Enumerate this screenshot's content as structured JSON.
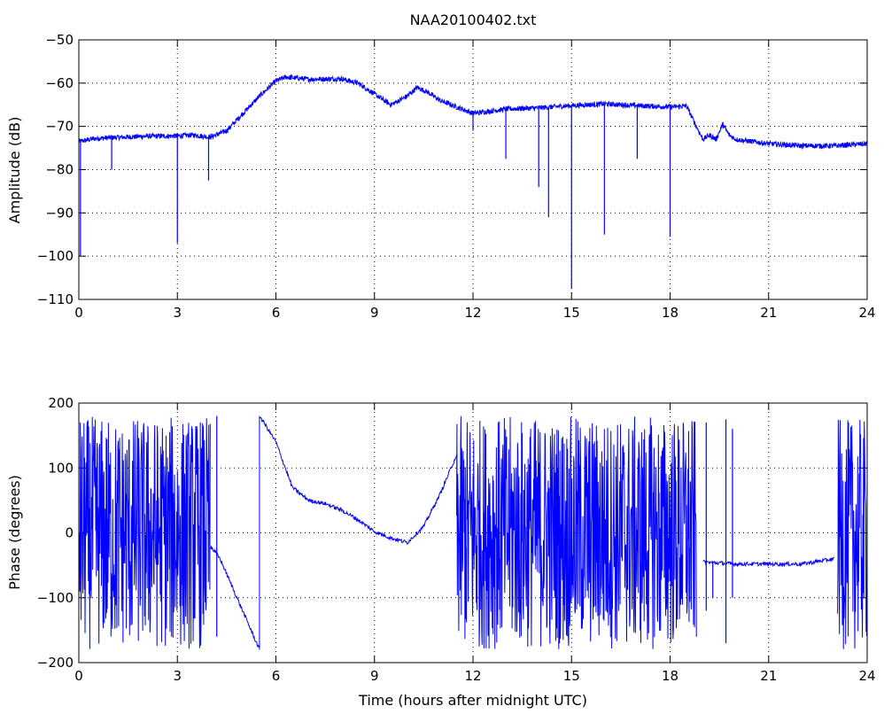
{
  "chart_data": [
    {
      "type": "line",
      "title": "NAA20100402.txt",
      "xlabel": "",
      "ylabel": "Amplitude (dB)",
      "xlim": [
        0,
        24
      ],
      "ylim": [
        -110,
        -50
      ],
      "xticks": [
        0,
        3,
        6,
        9,
        12,
        15,
        18,
        21,
        24
      ],
      "yticks": [
        -110,
        -100,
        -90,
        -80,
        -70,
        -60,
        -50
      ],
      "grid": true,
      "color": "#0000ff",
      "series": [
        {
          "baseline": [
            [
              0,
              -73.5
            ],
            [
              0.5,
              -72.8
            ],
            [
              1,
              -72.6
            ],
            [
              2,
              -72.3
            ],
            [
              3,
              -72.2
            ],
            [
              3.5,
              -72
            ],
            [
              4,
              -72.5
            ],
            [
              4.5,
              -71
            ],
            [
              5,
              -67
            ],
            [
              5.5,
              -63
            ],
            [
              6,
              -59.5
            ],
            [
              6.3,
              -58.6
            ],
            [
              7,
              -59.1
            ],
            [
              8,
              -59
            ],
            [
              8.5,
              -60
            ],
            [
              9,
              -62.5
            ],
            [
              9.5,
              -65
            ],
            [
              10,
              -63
            ],
            [
              10.3,
              -61
            ],
            [
              10.6,
              -62
            ],
            [
              11,
              -64
            ],
            [
              11.5,
              -65.5
            ],
            [
              12,
              -67
            ],
            [
              13,
              -66
            ],
            [
              14,
              -65.7
            ],
            [
              15,
              -65.2
            ],
            [
              16,
              -64.8
            ],
            [
              17,
              -65.2
            ],
            [
              18,
              -65.5
            ],
            [
              18.5,
              -65.3
            ],
            [
              18.8,
              -70
            ],
            [
              19,
              -73
            ],
            [
              19.2,
              -72
            ],
            [
              19.4,
              -73
            ],
            [
              19.6,
              -69.5
            ],
            [
              19.8,
              -72
            ],
            [
              20,
              -73
            ],
            [
              21,
              -74
            ],
            [
              22,
              -74.5
            ],
            [
              23,
              -74.5
            ],
            [
              24,
              -74
            ]
          ],
          "spikes": [
            [
              0.05,
              -100
            ],
            [
              1,
              -80
            ],
            [
              3,
              -97
            ],
            [
              3.95,
              -82.5
            ],
            [
              12,
              -71
            ],
            [
              13,
              -77.5
            ],
            [
              14,
              -84
            ],
            [
              14.3,
              -91
            ],
            [
              15,
              -107.5
            ],
            [
              16,
              -95
            ],
            [
              17,
              -77.5
            ],
            [
              18,
              -95.5
            ]
          ]
        }
      ]
    },
    {
      "type": "line",
      "title": "",
      "xlabel": "Time (hours after midnight UTC)",
      "ylabel": "Phase (degrees)",
      "xlim": [
        0,
        24
      ],
      "ylim": [
        -200,
        200
      ],
      "xticks": [
        0,
        3,
        6,
        9,
        12,
        15,
        18,
        21,
        24
      ],
      "yticks": [
        -200,
        -100,
        0,
        100,
        200
      ],
      "grid": true,
      "color": "#0000ff",
      "series": [
        {
          "noise_bands": [
            [
              0,
              4,
              -180,
              180
            ],
            [
              11.5,
              18.8,
              -180,
              180
            ],
            [
              23.1,
              24,
              -180,
              175
            ]
          ],
          "trend": [
            [
              4,
              -20
            ],
            [
              4.3,
              -40
            ],
            [
              5.5,
              -180
            ],
            [
              5.51,
              180
            ],
            [
              6,
              140
            ],
            [
              6.5,
              70
            ],
            [
              7,
              50
            ],
            [
              7.5,
              45
            ],
            [
              8,
              35
            ],
            [
              8.5,
              20
            ],
            [
              9,
              2
            ],
            [
              9.5,
              -8
            ],
            [
              10,
              -15
            ],
            [
              10.5,
              10
            ],
            [
              11,
              60
            ],
            [
              11.5,
              120
            ],
            [
              19,
              -45
            ],
            [
              20,
              -48
            ],
            [
              21,
              -48
            ],
            [
              22,
              -48
            ],
            [
              23,
              -40
            ]
          ],
          "spikes": [
            [
              4.2,
              180
            ],
            [
              4.2,
              -160
            ],
            [
              19.1,
              -120
            ],
            [
              19.1,
              170
            ],
            [
              19.3,
              -100
            ],
            [
              19.7,
              -170
            ],
            [
              19.7,
              175
            ],
            [
              19.9,
              -100
            ],
            [
              19.9,
              160
            ]
          ]
        }
      ]
    }
  ]
}
